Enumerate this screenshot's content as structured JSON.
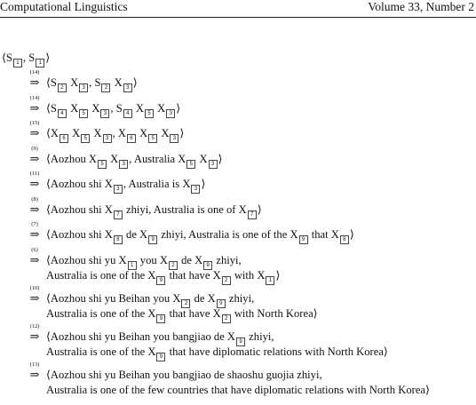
{
  "header": {
    "journal": "Computational Linguistics",
    "volume": "Volume 33, Number 2"
  },
  "initial": "⟨S[1], S[1]⟩",
  "derivation_steps": [
    {
      "rule": "(14)",
      "lines": [
        "⟨S[2] X[3], S[2] X[3]⟩"
      ]
    },
    {
      "rule": "(14)",
      "lines": [
        "⟨S[4] X[5] X[3], S[4] X[5] X[3]⟩"
      ]
    },
    {
      "rule": "(15)",
      "lines": [
        "⟨X[6] X[5] X[3], X[6] X[5] X[3]⟩"
      ]
    },
    {
      "rule": "(9)",
      "lines": [
        "⟨Aozhou X[5] X[3], Australia X[5] X[3]⟩"
      ]
    },
    {
      "rule": "(11)",
      "lines": [
        "⟨Aozhou shi X[3], Australia is X[3]⟩"
      ]
    },
    {
      "rule": "(8)",
      "lines": [
        "⟨Aozhou shi X[7] zhiyi, Australia is one of X[7]⟩"
      ]
    },
    {
      "rule": "(7)",
      "lines": [
        "⟨Aozhou shi X[8] de X[9] zhiyi, Australia is one of the X[9] that X[8]⟩"
      ]
    },
    {
      "rule": "(6)",
      "lines": [
        "⟨Aozhou shi yu X[1] you X[2] de X[9] zhiyi,",
        "Australia is one of the X[9] that have X[2] with X[1]⟩"
      ]
    },
    {
      "rule": "(10)",
      "lines": [
        "⟨Aozhou shi yu Beihan you X[2] de X[9] zhiyi,",
        "Australia is one of the X[9] that have X[2] with North Korea⟩"
      ]
    },
    {
      "rule": "(12)",
      "lines": [
        "⟨Aozhou shi yu Beihan you bangjiao de X[9] zhiyi,",
        "Australia is one of the X[9] that have diplomatic relations with North Korea⟩"
      ]
    },
    {
      "rule": "(13)",
      "lines": [
        "⟨Aozhou shi yu Beihan you bangjiao de shaoshu guojia zhiyi,",
        "Australia is one of the few countries that have diplomatic relations with North Korea⟩"
      ]
    }
  ]
}
